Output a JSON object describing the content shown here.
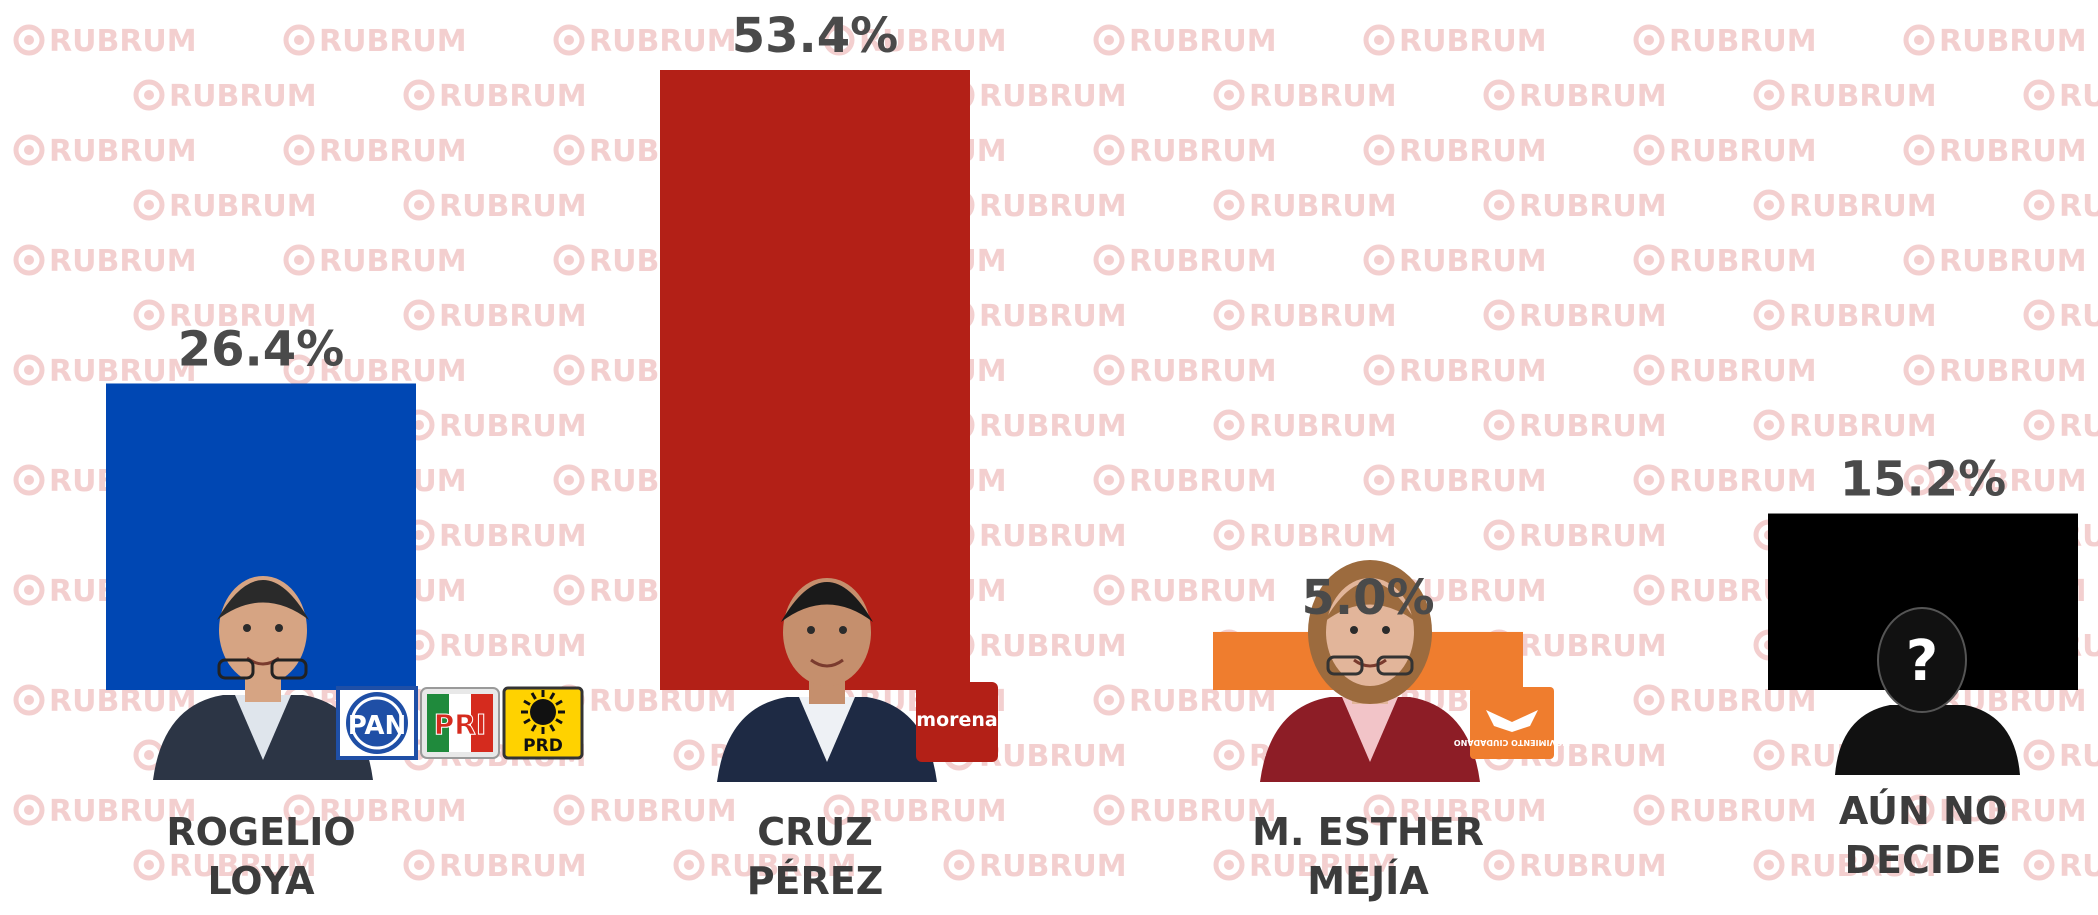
{
  "watermark": {
    "text": "RUBRUM",
    "color": "#f3cfcf"
  },
  "chart_data": {
    "type": "bar",
    "categories": [
      "ROGELIO LOYA",
      "CRUZ PÉREZ",
      "M. ESTHER MEJÍA",
      "AÚN NO DECIDE"
    ],
    "name_lines": [
      [
        "ROGELIO",
        "LOYA"
      ],
      [
        "CRUZ",
        "PÉREZ"
      ],
      [
        "M. ESTHER",
        "MEJÍA"
      ],
      [
        "AÚN NO",
        "DECIDE"
      ]
    ],
    "values": [
      26.4,
      53.4,
      5.0,
      15.2
    ],
    "value_labels": [
      "26.4%",
      "53.4%",
      "5.0%",
      "15.2%"
    ],
    "colors": [
      "#0047b3",
      "#b32017",
      "#ef7d2e",
      "#000000"
    ],
    "ylim": [
      0,
      53.4
    ],
    "grid": false,
    "legend": "none"
  },
  "party_logos": [
    [
      {
        "icon": "pan-logo",
        "text": "PAN",
        "color": "#1f4fa6"
      },
      {
        "icon": "pri-logo",
        "text": "PRI",
        "color": "#d52b1e"
      },
      {
        "icon": "prd-logo",
        "text": "PRD",
        "color": "#ffd200"
      }
    ],
    [
      {
        "icon": "morena-logo",
        "text": "morena",
        "color": "#b32017"
      }
    ],
    [
      {
        "icon": "movimiento-ciudadano-logo",
        "text": "MOVIMIENTO CIUDADANO",
        "color": "#ef7d2e"
      }
    ],
    []
  ],
  "unknown_symbol": "?"
}
